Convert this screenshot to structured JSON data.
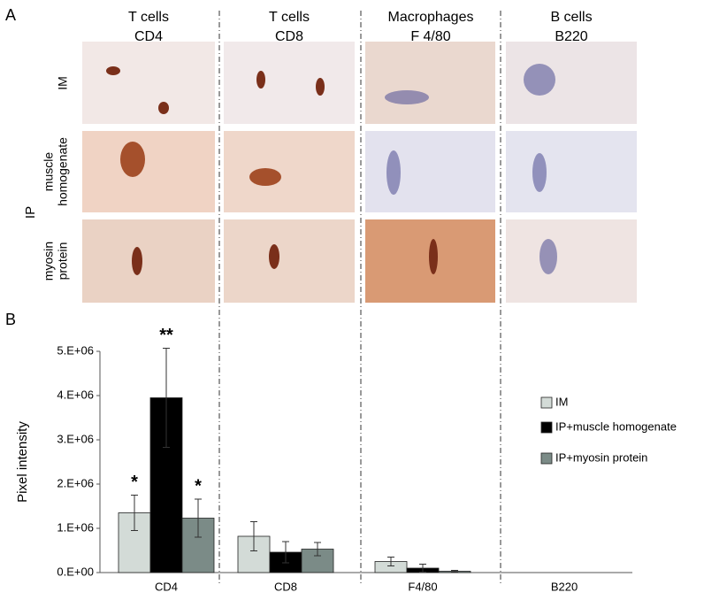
{
  "panel_a": {
    "label": "A",
    "columns": [
      [
        "T cells",
        "CD4"
      ],
      [
        "T cells",
        "CD8"
      ],
      [
        "Macrophages",
        "F 4/80"
      ],
      [
        "B cells",
        "B220"
      ]
    ],
    "rows": [
      [
        "IM"
      ],
      [
        "muscle",
        "homogenate"
      ],
      [
        "myosin",
        "protein"
      ]
    ],
    "group_label": "IP"
  },
  "chart_data": {
    "type": "bar",
    "panel_label": "B",
    "ylabel": "Pixel intensity",
    "categories": [
      "CD4",
      "CD8",
      "F4/80",
      "B220"
    ],
    "series": [
      {
        "name": "IM",
        "color": "#d3dbd7",
        "values": [
          1350000,
          820000,
          250000,
          0
        ],
        "errors": [
          400000,
          330000,
          100000,
          0
        ],
        "significance": [
          "*",
          null,
          null,
          null
        ]
      },
      {
        "name": "IP+muscle homogenate",
        "color": "#000000",
        "values": [
          3950000,
          460000,
          100000,
          0
        ],
        "errors": [
          1120000,
          240000,
          90000,
          0
        ],
        "significance": [
          "**",
          null,
          null,
          null
        ]
      },
      {
        "name": "IP+myosin protein",
        "color": "#7b8b87",
        "values": [
          1230000,
          530000,
          30000,
          0
        ],
        "errors": [
          430000,
          150000,
          20000,
          0
        ],
        "significance": [
          "*",
          null,
          null,
          null
        ]
      }
    ],
    "ylim": [
      0,
      5000000
    ],
    "yticks": [
      {
        "value": 0,
        "label": "0.E+00"
      },
      {
        "value": 1000000,
        "label": "1.E+06"
      },
      {
        "value": 2000000,
        "label": "2.E+06"
      },
      {
        "value": 3000000,
        "label": "3.E+06"
      },
      {
        "value": 4000000,
        "label": "4.E+06"
      },
      {
        "value": 5000000,
        "label": "5.E+06"
      }
    ],
    "legend": "right",
    "grid": false
  }
}
